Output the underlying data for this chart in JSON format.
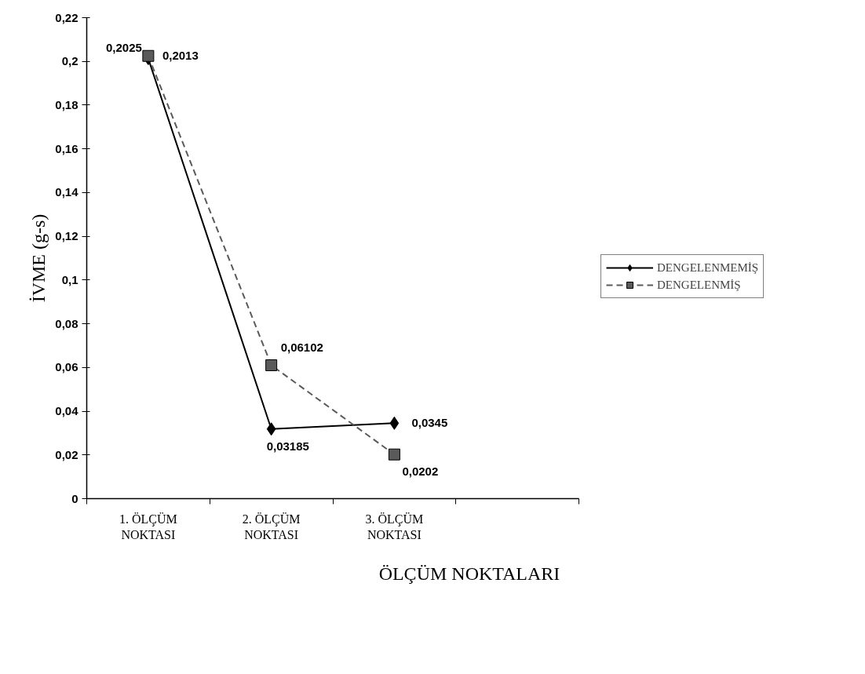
{
  "chart_data": {
    "type": "line",
    "xlabel": "ÖLÇÜM NOKTALARI",
    "ylabel": "İVME (g-s)",
    "categories": [
      "1. ÖLÇÜM NOKTASI",
      "2. ÖLÇÜM NOKTASI",
      "3. ÖLÇÜM NOKTASI",
      null
    ],
    "series": [
      {
        "name": "DENGELENMEMİŞ",
        "color": "#000000",
        "marker": "diamond",
        "line_style": "solid",
        "values": [
          0.2013,
          0.03185,
          0.0345,
          null
        ],
        "value_labels": [
          "0,2013",
          "0,03185",
          "0,0345",
          null
        ]
      },
      {
        "name": "DENGELENMİŞ",
        "color": "#5a5a5a",
        "marker": "square",
        "line_style": "dashed",
        "values": [
          0.2025,
          0.06102,
          0.0202,
          null
        ],
        "value_labels": [
          "0,2025",
          "0,06102",
          "0,0202",
          null
        ]
      }
    ],
    "ylim": [
      0,
      0.22
    ],
    "yticks": [
      {
        "value": 0,
        "label": "0"
      },
      {
        "value": 0.02,
        "label": "0,02"
      },
      {
        "value": 0.04,
        "label": "0,04"
      },
      {
        "value": 0.06,
        "label": "0,06"
      },
      {
        "value": 0.08,
        "label": "0,08"
      },
      {
        "value": 0.1,
        "label": "0,1"
      },
      {
        "value": 0.12,
        "label": "0,12"
      },
      {
        "value": 0.14,
        "label": "0,14"
      },
      {
        "value": 0.16,
        "label": "0,16"
      },
      {
        "value": 0.18,
        "label": "0,18"
      },
      {
        "value": 0.2,
        "label": "0,2"
      },
      {
        "value": 0.22,
        "label": "0,22"
      }
    ],
    "grid": false,
    "legend": "right"
  }
}
